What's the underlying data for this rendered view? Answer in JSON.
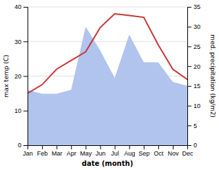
{
  "chart_data": {
    "type": "line",
    "categories": [
      "Jan",
      "Feb",
      "Mar",
      "Apr",
      "May",
      "Jun",
      "Jul",
      "Aug",
      "Sep",
      "Oct",
      "Nov",
      "Dec"
    ],
    "series": [
      {
        "type": "area",
        "axis": "y2",
        "color": "#b0c4ee",
        "values": [
          14,
          13,
          13,
          14,
          30,
          24,
          17,
          28,
          21,
          21,
          16,
          15
        ]
      },
      {
        "type": "line",
        "color": "#cc3333",
        "values": [
          15,
          17.5,
          22,
          24.5,
          27,
          34,
          38,
          37.5,
          37,
          29,
          22,
          19
        ]
      }
    ],
    "xlabel": "date (month)",
    "ylabel": "max temp (C)",
    "y2label": "med. precipitation (kg/m2)",
    "ylim": [
      0,
      40
    ],
    "yticks": [
      0,
      10,
      20,
      30,
      40
    ],
    "y2lim": [
      0,
      35
    ],
    "y2ticks": [
      0,
      5,
      10,
      15,
      20,
      25,
      30,
      35
    ],
    "grid": true
  }
}
